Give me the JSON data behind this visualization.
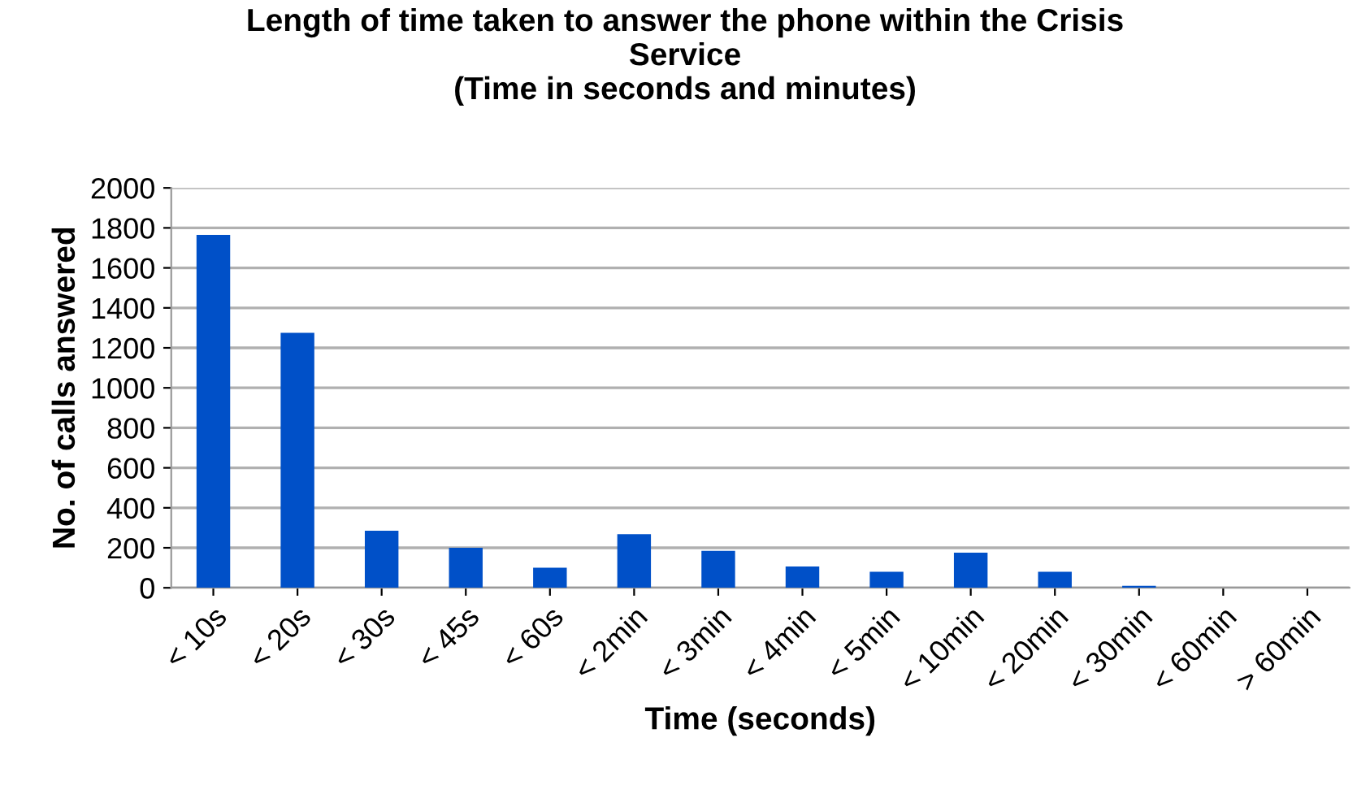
{
  "chart_data": {
    "type": "bar",
    "title": "Length of time taken to answer the phone within the Crisis\nService\n(Time in seconds and minutes)",
    "xlabel": "Time (seconds)",
    "ylabel": "No. of calls answered",
    "categories": [
      "< 10s",
      "< 20s",
      "< 30s",
      "< 45s",
      "< 60s",
      "< 2min",
      "< 3min",
      "< 4min",
      "< 5min",
      "< 10min",
      "< 20min",
      "< 30min",
      "< 60min",
      "> 60min"
    ],
    "values": [
      1765,
      1275,
      285,
      200,
      100,
      268,
      185,
      107,
      80,
      176,
      80,
      10,
      0,
      0
    ],
    "color": "#0050c8",
    "ylim": [
      0,
      2000
    ],
    "yticks": [
      0,
      200,
      400,
      600,
      800,
      1000,
      1200,
      1400,
      1600,
      1800,
      2000
    ],
    "grid": "y"
  }
}
